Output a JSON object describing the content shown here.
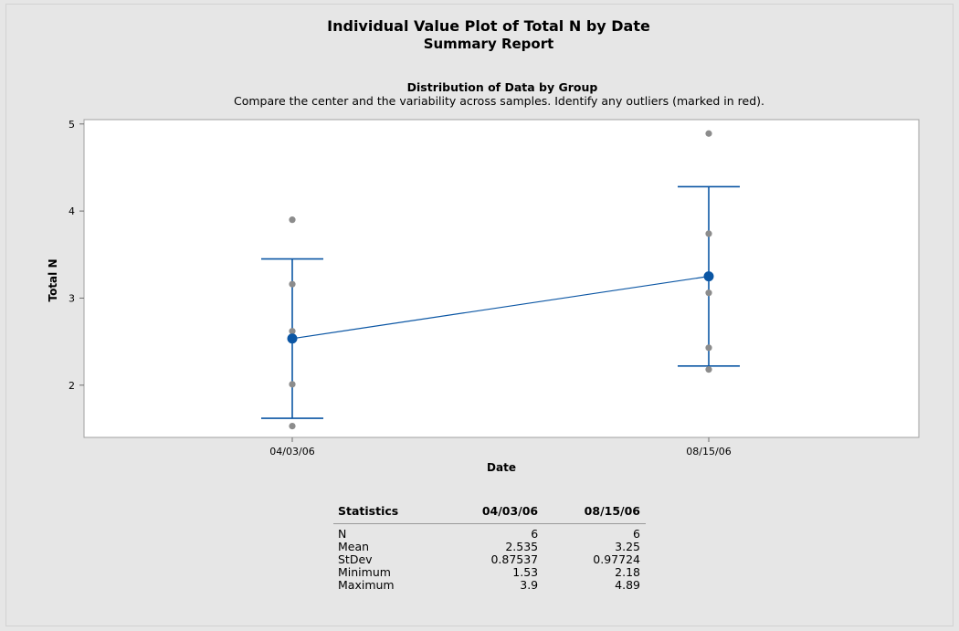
{
  "report": {
    "title": "Individual Value Plot of Total N by Date",
    "subtitle": "Summary Report"
  },
  "section": {
    "title": "Distribution of Data by Group",
    "description": "Compare the center and the variability across samples. Identify any outliers (marked in red)."
  },
  "colors": {
    "point": "#8c8c8c",
    "mean": "#0b56a4",
    "line": "#0b56a4",
    "plot_bg": "#ffffff",
    "page_bg": "#e6e6e6"
  },
  "chart_data": {
    "type": "scatter",
    "subtype": "individual value plot with mean and interval bars",
    "xlabel": "Date",
    "ylabel": "Total N",
    "categories": [
      "04/03/06",
      "08/15/06"
    ],
    "ylim": [
      1.4,
      5.05
    ],
    "yticks": [
      2,
      3,
      4,
      5
    ],
    "grid": false,
    "groups": [
      {
        "category": "04/03/06",
        "points": [
          1.53,
          2.01,
          2.55,
          2.62,
          3.16,
          3.9
        ],
        "mean": 2.535,
        "interval": [
          1.62,
          3.45
        ]
      },
      {
        "category": "08/15/06",
        "points": [
          2.18,
          2.43,
          3.06,
          3.25,
          3.74,
          4.89
        ],
        "mean": 3.25,
        "interval": [
          2.22,
          4.28
        ]
      }
    ],
    "mean_connect_line": true
  },
  "statistics": {
    "header": [
      "Statistics",
      "04/03/06",
      "08/15/06"
    ],
    "rows": [
      [
        "N",
        "6",
        "6"
      ],
      [
        "Mean",
        "2.535",
        "3.25"
      ],
      [
        "StDev",
        "0.87537",
        "0.97724"
      ],
      [
        "Minimum",
        "1.53",
        "2.18"
      ],
      [
        "Maximum",
        "3.9",
        "4.89"
      ]
    ]
  }
}
